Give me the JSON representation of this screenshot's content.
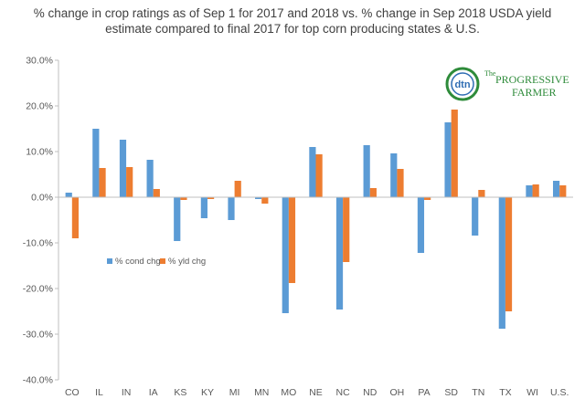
{
  "chart_data": {
    "type": "bar",
    "title": "% change in crop ratings as of Sep 1 for 2017 and 2018 vs. % change in Sep 2018 USDA yield estimate compared to final 2017 for top corn producing states & U.S.",
    "categories": [
      "CO",
      "IL",
      "IN",
      "IA",
      "KS",
      "KY",
      "MI",
      "MN",
      "MO",
      "NE",
      "NC",
      "ND",
      "OH",
      "PA",
      "SD",
      "TN",
      "TX",
      "WI",
      "U.S."
    ],
    "series": [
      {
        "name": "% cond chg",
        "color": "#5b9bd5",
        "values": [
          1.0,
          15.0,
          12.6,
          8.2,
          -9.6,
          -4.6,
          -5.0,
          -0.4,
          -25.4,
          11.0,
          -24.6,
          11.4,
          9.6,
          -12.2,
          16.4,
          -8.4,
          -28.8,
          2.6,
          3.6
        ]
      },
      {
        "name": "% yld chg",
        "color": "#ed7d31",
        "values": [
          -9.0,
          6.4,
          6.6,
          1.8,
          -0.6,
          -0.4,
          3.6,
          -1.4,
          -18.8,
          9.4,
          -14.2,
          2.0,
          6.2,
          -0.6,
          19.2,
          1.6,
          -25.0,
          2.8,
          2.6
        ]
      }
    ],
    "yticks": [
      "30.0%",
      "20.0%",
      "10.0%",
      "0.0%",
      "-10.0%",
      "-20.0%",
      "-30.0%",
      "-40.0%"
    ],
    "ylim": [
      -40,
      30
    ],
    "legend_position": "left-middle",
    "grid": false
  },
  "logo": {
    "badge_text": "dtn",
    "line1": "The",
    "line2": "PROGRESSIVE",
    "line3": "FARMER",
    "colors": {
      "green": "#2e8b3a",
      "blue": "#2f6db3",
      "orange": "#e8742a"
    }
  }
}
